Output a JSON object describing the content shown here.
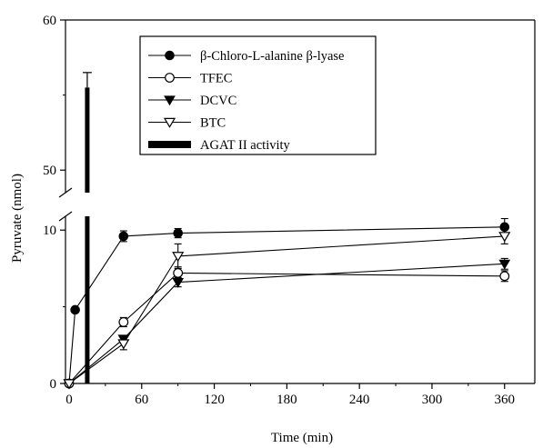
{
  "chart_data": {
    "type": "line",
    "title": "",
    "xlabel": "Time (min)",
    "ylabel": "Pyruvate (nmol)",
    "xlim": [
      -3,
      385
    ],
    "ylim_lower": [
      0,
      10.9
    ],
    "ylim_upper": [
      48.5,
      60
    ],
    "x_ticks": [
      0,
      60,
      120,
      180,
      240,
      300,
      360
    ],
    "y_ticks_lower": [
      0,
      10
    ],
    "y_ticks_upper": [
      50,
      60
    ],
    "grid": false,
    "legend_position": "top-center",
    "series": [
      {
        "name": "β-Chloro-L-alanine β-lyase",
        "marker": "filled-circle",
        "x": [
          0,
          5,
          45,
          90,
          360
        ],
        "y": [
          0,
          4.8,
          9.6,
          9.8,
          10.2
        ],
        "err": [
          0,
          0,
          0.35,
          0.3,
          0.55
        ]
      },
      {
        "name": "TFEC",
        "marker": "open-circle",
        "x": [
          0,
          45,
          90,
          360
        ],
        "y": [
          0,
          4.0,
          7.2,
          7.0
        ],
        "err": [
          0,
          0.3,
          0.4,
          0.35
        ]
      },
      {
        "name": "DCVC",
        "marker": "filled-triangle-down",
        "x": [
          0,
          45,
          90,
          360
        ],
        "y": [
          0,
          2.9,
          6.6,
          7.8
        ],
        "err": [
          0,
          0.2,
          0.3,
          0.35
        ]
      },
      {
        "name": "BTC",
        "marker": "open-triangle-down",
        "x": [
          0,
          45,
          90,
          360
        ],
        "y": [
          0,
          2.6,
          8.3,
          9.6
        ],
        "err": [
          0,
          0.4,
          0.8,
          0.5
        ]
      }
    ],
    "bar": {
      "name": "AGAT II activity",
      "x": 15,
      "y": 55.5,
      "err": 1.0
    }
  }
}
